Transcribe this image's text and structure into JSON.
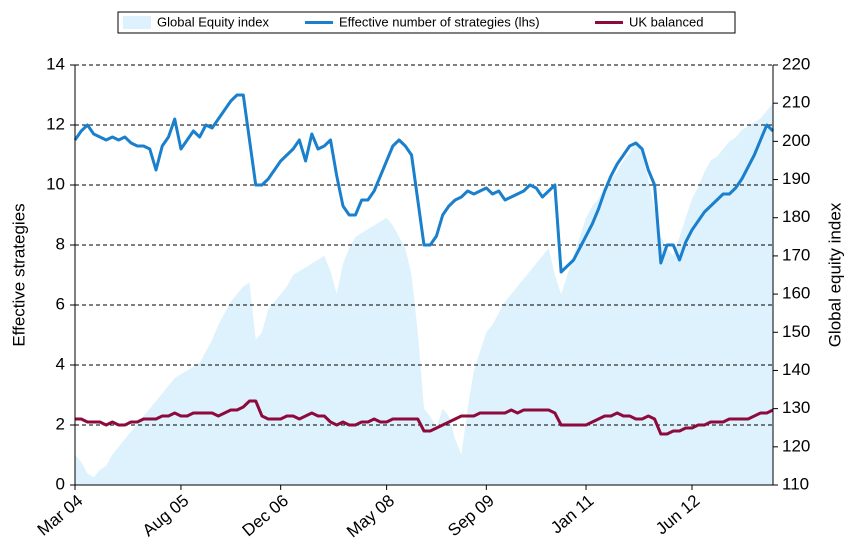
{
  "chart_data": {
    "type": "line",
    "y_label": "Effective strategies",
    "y2_label": "Global equity index",
    "categories": [
      "Mar 04",
      null,
      null,
      null,
      null,
      null,
      null,
      null,
      null,
      null,
      null,
      null,
      null,
      null,
      null,
      null,
      null,
      "Aug 05",
      null,
      null,
      null,
      null,
      null,
      null,
      null,
      null,
      null,
      null,
      null,
      null,
      null,
      null,
      null,
      "Dec 06",
      null,
      null,
      null,
      null,
      null,
      null,
      null,
      null,
      null,
      null,
      null,
      null,
      null,
      null,
      null,
      null,
      "May 08",
      null,
      null,
      null,
      null,
      null,
      null,
      null,
      null,
      null,
      null,
      null,
      null,
      null,
      null,
      null,
      "Sep 09",
      null,
      null,
      null,
      null,
      null,
      null,
      null,
      null,
      null,
      null,
      null,
      null,
      null,
      null,
      null,
      "Jan 11",
      null,
      null,
      null,
      null,
      null,
      null,
      null,
      null,
      null,
      null,
      null,
      null,
      null,
      null,
      null,
      null,
      "Jun 12",
      null,
      null,
      null,
      null,
      null,
      null,
      null,
      null,
      null,
      null,
      null,
      null,
      null
    ],
    "series": [
      {
        "name": "Global Equity index",
        "type": "area",
        "axis": "y2",
        "color": "#ddf2fc",
        "values": [
          118,
          116,
          113,
          112,
          114,
          115,
          118,
          120,
          122,
          124,
          126,
          128,
          130,
          132,
          134,
          136,
          138,
          139,
          140,
          141,
          142,
          145,
          148,
          152,
          155,
          158,
          160,
          162,
          163,
          148,
          150,
          156,
          158,
          160,
          162,
          165,
          166,
          167,
          168,
          169,
          170,
          166,
          160,
          168,
          172,
          175,
          176,
          177,
          178,
          179,
          180,
          178,
          175,
          172,
          165,
          150,
          130,
          128,
          125,
          130,
          128,
          122,
          118,
          130,
          140,
          145,
          150,
          152,
          155,
          158,
          160,
          162,
          164,
          166,
          168,
          170,
          172,
          165,
          160,
          165,
          170,
          175,
          180,
          183,
          185,
          188,
          190,
          192,
          195,
          197,
          200,
          197,
          190,
          182,
          175,
          172,
          170,
          175,
          180,
          185,
          188,
          192,
          195,
          196,
          198,
          200,
          201,
          203,
          204,
          205,
          206,
          208,
          210
        ]
      },
      {
        "name": "Effective number of strategies (lhs)",
        "type": "line",
        "color": "#1a7fcc",
        "values": [
          11.5,
          11.8,
          12.0,
          11.7,
          11.6,
          11.5,
          11.6,
          11.5,
          11.6,
          11.4,
          11.3,
          11.3,
          11.2,
          10.5,
          11.3,
          11.6,
          12.2,
          11.2,
          11.5,
          11.8,
          11.6,
          12.0,
          11.9,
          12.2,
          12.5,
          12.8,
          13.0,
          13.0,
          11.5,
          10.0,
          10.0,
          10.2,
          10.5,
          10.8,
          11.0,
          11.2,
          11.5,
          10.8,
          11.7,
          11.2,
          11.3,
          11.5,
          10.3,
          9.3,
          9.0,
          9.0,
          9.5,
          9.5,
          9.8,
          10.3,
          10.8,
          11.3,
          11.5,
          11.3,
          11.0,
          9.5,
          8.0,
          8.0,
          8.3,
          9.0,
          9.3,
          9.5,
          9.6,
          9.8,
          9.7,
          9.8,
          9.9,
          9.7,
          9.8,
          9.5,
          9.6,
          9.7,
          9.8,
          10.0,
          9.9,
          9.6,
          9.8,
          10.0,
          7.1,
          7.3,
          7.5,
          7.9,
          8.3,
          8.7,
          9.2,
          9.8,
          10.3,
          10.7,
          11.0,
          11.3,
          11.4,
          11.2,
          10.5,
          10.0,
          7.4,
          8.0,
          8.0,
          7.5,
          8.1,
          8.5,
          8.8,
          9.1,
          9.3,
          9.5,
          9.7,
          9.7,
          9.9,
          10.2,
          10.6,
          11.0,
          11.5,
          12.0,
          11.8
        ]
      },
      {
        "name": "UK balanced",
        "type": "line",
        "color": "#8c0b3c",
        "values": [
          2.2,
          2.2,
          2.1,
          2.1,
          2.1,
          2.0,
          2.1,
          2.0,
          2.0,
          2.1,
          2.1,
          2.2,
          2.2,
          2.2,
          2.3,
          2.3,
          2.4,
          2.3,
          2.3,
          2.4,
          2.4,
          2.4,
          2.4,
          2.3,
          2.4,
          2.5,
          2.5,
          2.6,
          2.8,
          2.8,
          2.3,
          2.2,
          2.2,
          2.2,
          2.3,
          2.3,
          2.2,
          2.3,
          2.4,
          2.3,
          2.3,
          2.1,
          2.0,
          2.1,
          2.0,
          2.0,
          2.1,
          2.1,
          2.2,
          2.1,
          2.1,
          2.2,
          2.2,
          2.2,
          2.2,
          2.2,
          1.8,
          1.8,
          1.9,
          2.0,
          2.1,
          2.2,
          2.3,
          2.3,
          2.3,
          2.4,
          2.4,
          2.4,
          2.4,
          2.4,
          2.5,
          2.4,
          2.5,
          2.5,
          2.5,
          2.5,
          2.5,
          2.4,
          2.0,
          2.0,
          2.0,
          2.0,
          2.0,
          2.1,
          2.2,
          2.3,
          2.3,
          2.4,
          2.3,
          2.3,
          2.2,
          2.2,
          2.3,
          2.2,
          1.7,
          1.7,
          1.8,
          1.8,
          1.9,
          1.9,
          2.0,
          2.0,
          2.1,
          2.1,
          2.1,
          2.2,
          2.2,
          2.2,
          2.2,
          2.3,
          2.4,
          2.4,
          2.5
        ]
      }
    ],
    "ylim": [
      0,
      14
    ],
    "yticks": [
      0,
      2,
      4,
      6,
      8,
      10,
      12,
      14
    ],
    "y2lim": [
      110,
      220
    ],
    "y2ticks": [
      110,
      120,
      130,
      140,
      150,
      160,
      170,
      180,
      190,
      200,
      210,
      220
    ],
    "grid": true,
    "legend": "top"
  }
}
